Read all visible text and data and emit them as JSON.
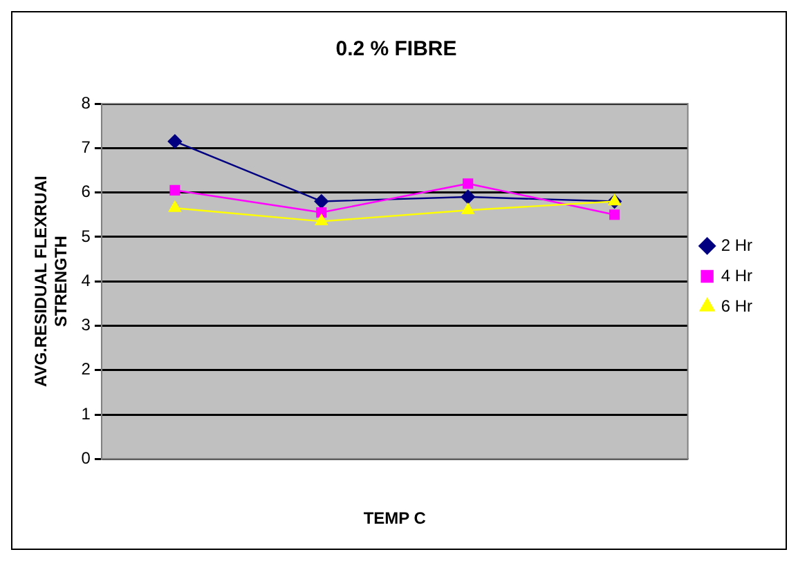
{
  "chart_data": {
    "type": "line",
    "title": "0.2 % FIBRE",
    "xlabel": "TEMP C",
    "ylabel": "AVG.RESIDUAL FLEXRUAI STRENGTH",
    "categories": [
      null,
      null,
      null,
      null
    ],
    "series": [
      {
        "name": "2 Hr",
        "color": "#000080",
        "marker": "diamond",
        "values": [
          7.15,
          5.8,
          5.9,
          5.8
        ]
      },
      {
        "name": "4 Hr",
        "color": "#ff00ff",
        "marker": "square",
        "values": [
          6.05,
          5.55,
          6.2,
          5.5
        ]
      },
      {
        "name": "6 Hr",
        "color": "#ffff00",
        "marker": "triangle",
        "values": [
          5.65,
          5.35,
          5.6,
          5.8
        ]
      }
    ],
    "ylim": [
      0,
      8
    ],
    "yticks": [
      0,
      1,
      2,
      3,
      4,
      5,
      6,
      7,
      8
    ],
    "grid": "y",
    "legend": "right"
  }
}
